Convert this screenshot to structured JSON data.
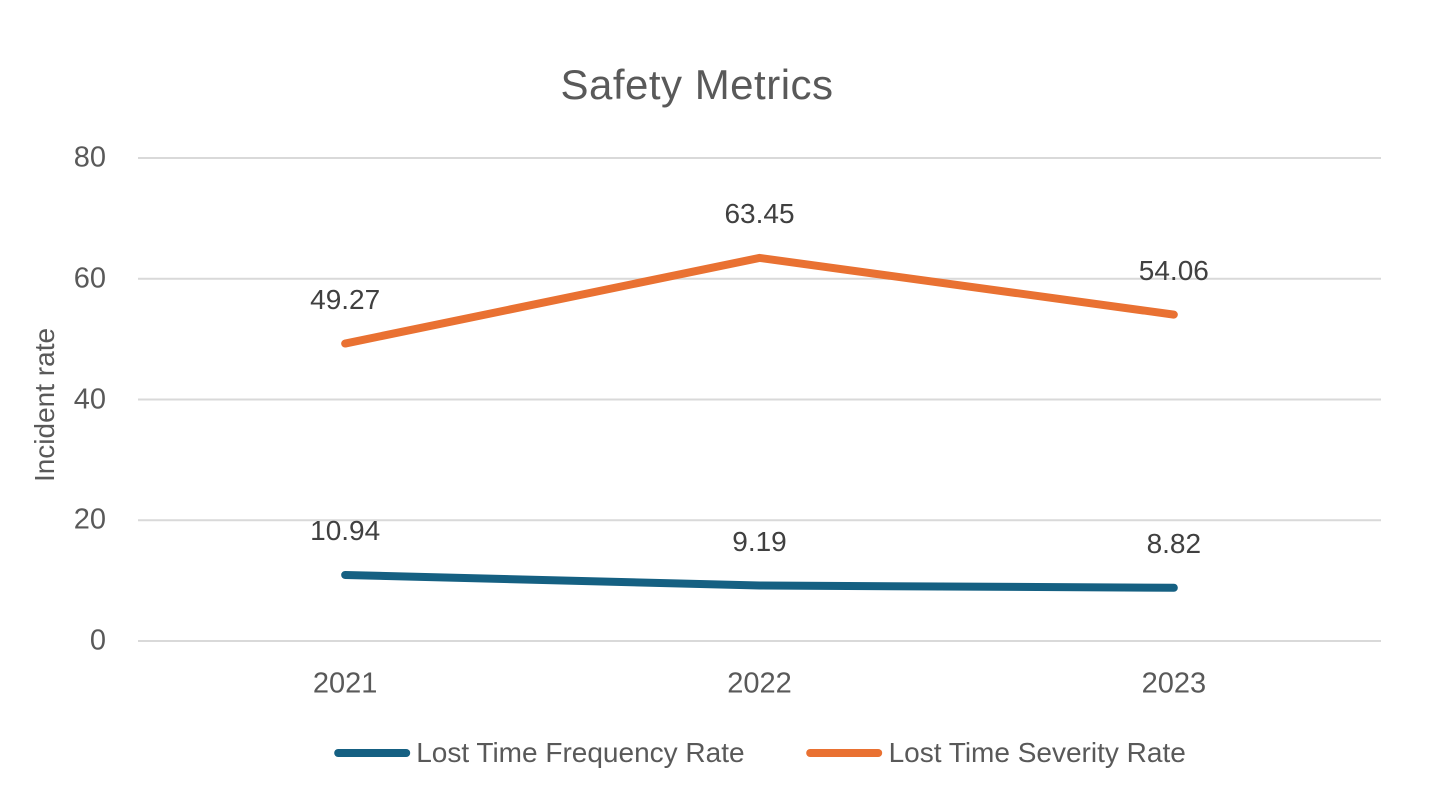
{
  "chart_data": {
    "type": "line",
    "title": "Safety Metrics",
    "xlabel": "",
    "ylabel": "Incident rate",
    "categories": [
      "2021",
      "2022",
      "2023"
    ],
    "series": [
      {
        "name": "Lost Time Frequency Rate",
        "values": [
          10.94,
          9.19,
          8.82
        ],
        "data_labels": [
          "10.94",
          "9.19",
          "8.82"
        ],
        "color": "#156082"
      },
      {
        "name": "Lost Time Severity Rate",
        "values": [
          49.27,
          63.45,
          54.06
        ],
        "data_labels": [
          "49.27",
          "63.45",
          "54.06"
        ],
        "color": "#E97132"
      }
    ],
    "ylim": [
      0,
      80
    ],
    "yticks": [
      0,
      20,
      40,
      60,
      80
    ],
    "grid": true,
    "legend_position": "bottom",
    "colors": {
      "title": "#595959",
      "axis_text": "#595959",
      "data_label": "#404040",
      "legend_text": "#595959",
      "gridline": "#D9D9D9",
      "background": "#FFFFFF"
    }
  }
}
